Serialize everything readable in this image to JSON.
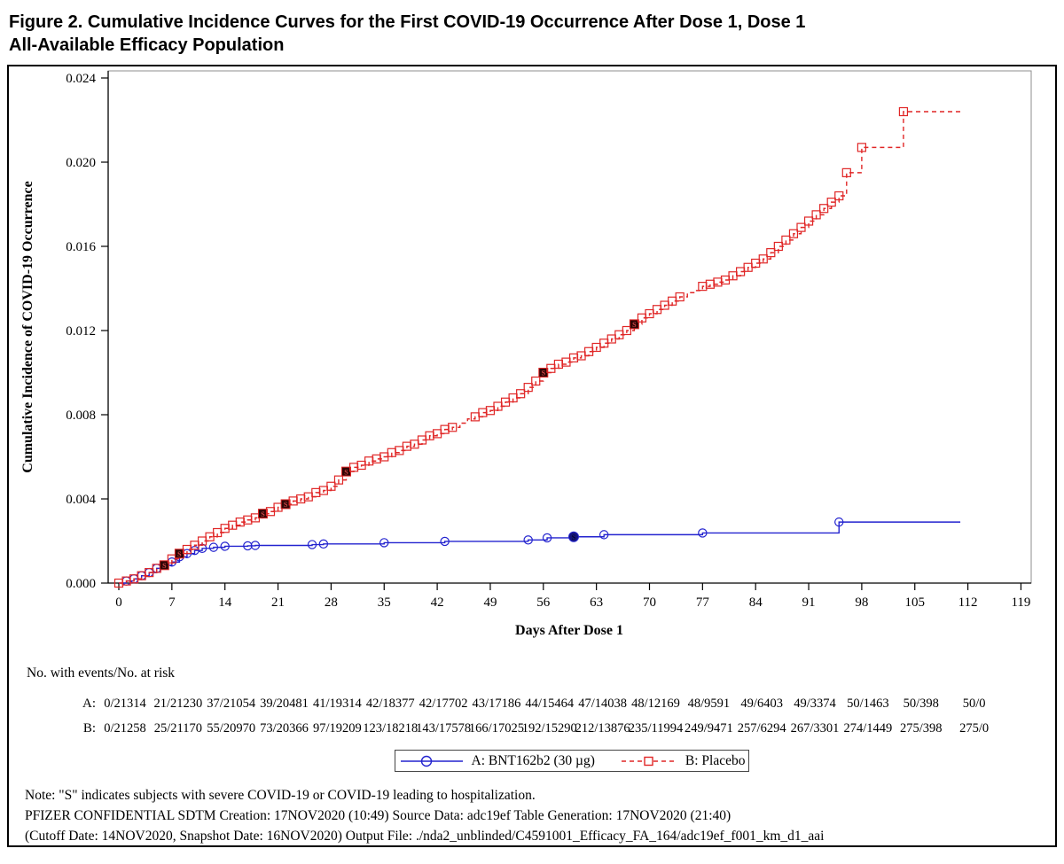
{
  "title": {
    "line1": "Figure 2. Cumulative Incidence Curves for the First COVID-19 Occurrence After Dose 1, Dose 1",
    "line2": "All-Available Efficacy Population"
  },
  "chart_data": {
    "type": "line",
    "subtype": "kaplan-meier-cumulative-incidence-step",
    "xlabel": "Days After Dose 1",
    "ylabel": "Cumulative Incidence of COVID-19 Occurrence",
    "xlim": [
      -1.5,
      120.5
    ],
    "ylim": [
      0,
      0.0245
    ],
    "grid": false,
    "legend_position": "bottom-center",
    "x_ticks": [
      0,
      7,
      14,
      21,
      28,
      35,
      42,
      49,
      56,
      63,
      70,
      77,
      84,
      91,
      98,
      105,
      112,
      119
    ],
    "y_ticks": [
      "0.000",
      "0.004",
      "0.008",
      "0.012",
      "0.016",
      "0.020",
      "0.024"
    ],
    "severe_note_symbol": "S",
    "series": [
      {
        "name": "A: BNT162b2 (30 µg)",
        "color": "#2323cf",
        "marker": "circle",
        "line": "solid",
        "points": [
          [
            0,
            0
          ],
          [
            1,
            0.0001
          ],
          [
            2,
            0.0002
          ],
          [
            3,
            0.00035
          ],
          [
            4,
            0.0005
          ],
          [
            5,
            0.0007
          ],
          [
            6,
            0.00085
          ],
          [
            7,
            0.001
          ],
          [
            8,
            0.00125
          ],
          [
            9,
            0.0014
          ],
          [
            10,
            0.00155
          ],
          [
            11,
            0.00165
          ],
          [
            12.5,
            0.0017
          ],
          [
            14,
            0.00175
          ],
          [
            17,
            0.00177
          ],
          [
            18,
            0.00179
          ],
          [
            25.5,
            0.00183
          ],
          [
            27,
            0.00186
          ],
          [
            35,
            0.00192
          ],
          [
            43,
            0.00198
          ],
          [
            54,
            0.00205
          ],
          [
            56.5,
            0.00215
          ],
          [
            60,
            0.0022
          ],
          [
            64,
            0.0023
          ],
          [
            77,
            0.00238
          ],
          [
            95,
            0.0029
          ],
          [
            111,
            0.0029
          ]
        ],
        "no_marker_days": [
          0,
          111
        ],
        "severe_marker_days": [
          60
        ]
      },
      {
        "name": "B: Placebo",
        "color": "#e02626",
        "marker": "square",
        "line": "dashed",
        "points": [
          [
            0,
            0
          ],
          [
            1,
            0.0001
          ],
          [
            2,
            0.0002
          ],
          [
            3,
            0.00035
          ],
          [
            4,
            0.0005
          ],
          [
            5,
            0.0007
          ],
          [
            6,
            0.00085
          ],
          [
            7,
            0.00115
          ],
          [
            8,
            0.0014
          ],
          [
            9,
            0.0016
          ],
          [
            10,
            0.0018
          ],
          [
            11,
            0.002
          ],
          [
            12,
            0.0022
          ],
          [
            13,
            0.0024
          ],
          [
            14,
            0.0026
          ],
          [
            15,
            0.00275
          ],
          [
            16,
            0.0029
          ],
          [
            17,
            0.003
          ],
          [
            18,
            0.0031
          ],
          [
            19,
            0.0033
          ],
          [
            20,
            0.0034
          ],
          [
            21,
            0.0036
          ],
          [
            22,
            0.00375
          ],
          [
            23,
            0.0039
          ],
          [
            24,
            0.004
          ],
          [
            25,
            0.0041
          ],
          [
            26,
            0.0043
          ],
          [
            27,
            0.0044
          ],
          [
            28,
            0.0046
          ],
          [
            29,
            0.0049
          ],
          [
            30,
            0.0053
          ],
          [
            31,
            0.0055
          ],
          [
            32,
            0.0056
          ],
          [
            33,
            0.0058
          ],
          [
            34,
            0.0059
          ],
          [
            35,
            0.006
          ],
          [
            36,
            0.0062
          ],
          [
            37,
            0.0063
          ],
          [
            38,
            0.0065
          ],
          [
            39,
            0.0066
          ],
          [
            40,
            0.0068
          ],
          [
            41,
            0.007
          ],
          [
            42,
            0.0071
          ],
          [
            43,
            0.0073
          ],
          [
            44,
            0.0074
          ],
          [
            45,
            0.0076
          ],
          [
            46,
            0.0078
          ],
          [
            47,
            0.0079
          ],
          [
            48,
            0.0081
          ],
          [
            49,
            0.0082
          ],
          [
            50,
            0.0084
          ],
          [
            51,
            0.0086
          ],
          [
            52,
            0.0088
          ],
          [
            53,
            0.009
          ],
          [
            54,
            0.0093
          ],
          [
            55,
            0.0096
          ],
          [
            56,
            0.01
          ],
          [
            57,
            0.0102
          ],
          [
            58,
            0.0104
          ],
          [
            59,
            0.0105
          ],
          [
            60,
            0.0107
          ],
          [
            61,
            0.0108
          ],
          [
            62,
            0.011
          ],
          [
            63,
            0.0112
          ],
          [
            64,
            0.0114
          ],
          [
            65,
            0.0116
          ],
          [
            66,
            0.0118
          ],
          [
            67,
            0.012
          ],
          [
            68,
            0.0123
          ],
          [
            69,
            0.0126
          ],
          [
            70,
            0.0128
          ],
          [
            71,
            0.013
          ],
          [
            72,
            0.0132
          ],
          [
            73,
            0.0134
          ],
          [
            74,
            0.0136
          ],
          [
            75,
            0.0138
          ],
          [
            76,
            0.0139
          ],
          [
            77,
            0.0141
          ],
          [
            78,
            0.0142
          ],
          [
            79,
            0.0143
          ],
          [
            80,
            0.0144
          ],
          [
            81,
            0.0146
          ],
          [
            82,
            0.0148
          ],
          [
            83,
            0.015
          ],
          [
            84,
            0.0152
          ],
          [
            85,
            0.0154
          ],
          [
            86,
            0.0157
          ],
          [
            87,
            0.016
          ],
          [
            88,
            0.0163
          ],
          [
            89,
            0.0166
          ],
          [
            90,
            0.0169
          ],
          [
            91,
            0.0172
          ],
          [
            92,
            0.0175
          ],
          [
            93,
            0.0178
          ],
          [
            94,
            0.0181
          ],
          [
            95,
            0.0184
          ],
          [
            96,
            0.0195
          ],
          [
            98,
            0.0207
          ],
          [
            103.5,
            0.0224
          ],
          [
            111,
            0.0224
          ]
        ],
        "no_marker_days": [
          45,
          46,
          75,
          76,
          111
        ],
        "severe_marker_days": [
          6,
          8,
          19,
          22,
          30,
          56,
          68
        ]
      }
    ]
  },
  "risk_table": {
    "header": "No. with events/No. at risk",
    "days": [
      0,
      7,
      14,
      21,
      28,
      35,
      42,
      49,
      56,
      63,
      70,
      77,
      84,
      91,
      98,
      105,
      112
    ],
    "rows": [
      {
        "label": "A:",
        "values": [
          "0/21314",
          "21/21230",
          "37/21054",
          "39/20481",
          "41/19314",
          "42/18377",
          "42/17702",
          "43/17186",
          "44/15464",
          "47/14038",
          "48/12169",
          "48/9591",
          "49/6403",
          "49/3374",
          "50/1463",
          "50/398",
          "50/0"
        ]
      },
      {
        "label": "B:",
        "values": [
          "0/21258",
          "25/21170",
          "55/20970",
          "73/20366",
          "97/19209",
          "123/18218",
          "143/17578",
          "166/17025",
          "192/15290",
          "212/13876",
          "235/11994",
          "249/9471",
          "257/6294",
          "267/3301",
          "274/1449",
          "275/398",
          "275/0"
        ]
      }
    ]
  },
  "legend": {
    "items": [
      {
        "label": "A: BNT162b2 (30 µg)"
      },
      {
        "label": "B: Placebo"
      }
    ]
  },
  "notes": {
    "line1": "Note: \"S\" indicates subjects with severe COVID-19 or COVID-19 leading to hospitalization.",
    "line2": "PFIZER CONFIDENTIAL  SDTM Creation: 17NOV2020 (10:49)  Source Data: adc19ef  Table Generation: 17NOV2020 (21:40)",
    "line3": "(Cutoff Date: 14NOV2020, Snapshot Date: 16NOV2020) Output File: ./nda2_unblinded/C4591001_Efficacy_FA_164/adc19ef_f001_km_d1_aai"
  },
  "colors": {
    "series_a": "#2323cf",
    "series_b": "#e02626",
    "severe_fill_a": "#14147a",
    "severe_fill_b": "#2e0606",
    "severe_glyph_a": "#05052d",
    "severe_glyph_b": "#d34848",
    "frame": "#8f8f8f",
    "axis": "#000000"
  }
}
